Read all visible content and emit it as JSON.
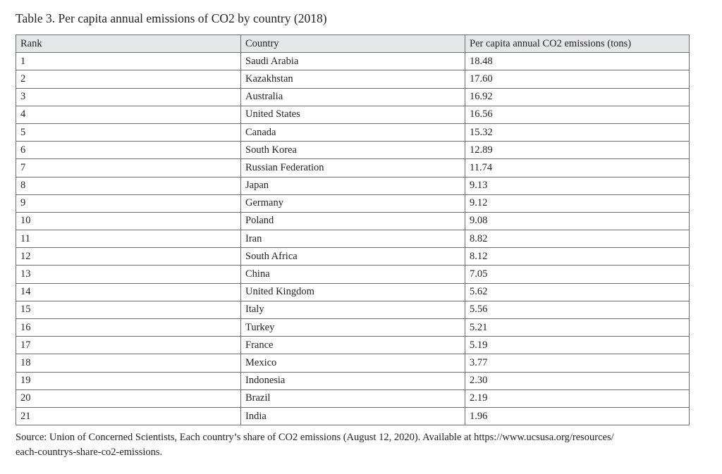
{
  "caption": "Table 3. Per capita annual emissions of CO2 by country (2018)",
  "table": {
    "headers": [
      "Rank",
      "Country",
      "Per capita annual CO2 emissions (tons)"
    ],
    "rows": [
      [
        "1",
        "Saudi Arabia",
        "18.48"
      ],
      [
        "2",
        "Kazakhstan",
        "17.60"
      ],
      [
        "3",
        "Australia",
        "16.92"
      ],
      [
        "4",
        "United States",
        "16.56"
      ],
      [
        "5",
        "Canada",
        "15.32"
      ],
      [
        "6",
        "South Korea",
        "12.89"
      ],
      [
        "7",
        "Russian Federation",
        "11.74"
      ],
      [
        "8",
        "Japan",
        "9.13"
      ],
      [
        "9",
        "Germany",
        "9.12"
      ],
      [
        "10",
        "Poland",
        "9.08"
      ],
      [
        "11",
        "Iran",
        "8.82"
      ],
      [
        "12",
        "South Africa",
        "8.12"
      ],
      [
        "13",
        "China",
        "7.05"
      ],
      [
        "14",
        "United Kingdom",
        "5.62"
      ],
      [
        "15",
        "Italy",
        "5.56"
      ],
      [
        "16",
        "Turkey",
        "5.21"
      ],
      [
        "17",
        "France",
        "5.19"
      ],
      [
        "18",
        "Mexico",
        "3.77"
      ],
      [
        "19",
        "Indonesia",
        "2.30"
      ],
      [
        "20",
        "Brazil",
        "2.19"
      ],
      [
        "21",
        "India",
        "1.96"
      ]
    ]
  },
  "source": {
    "line1": "Source: Union of Concerned Scientists, Each country’s share of CO2 emissions (August 12, 2020). Available at https://www.ucsusa.org/resources/",
    "line2": "each-countrys-share-co2-emissions."
  }
}
